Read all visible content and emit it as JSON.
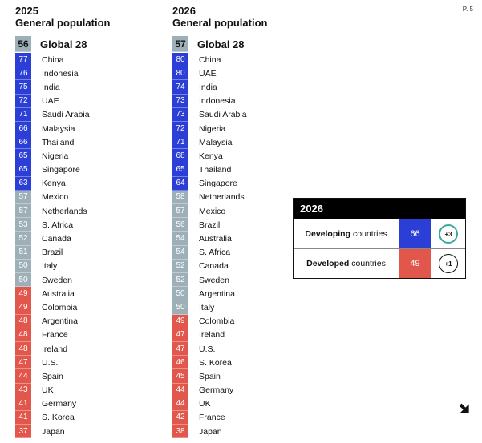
{
  "page_number": "P. 5",
  "colors": {
    "blue": "#2b3fd6",
    "grey": "#9db0b8",
    "red": "#e2574c",
    "teal": "#3aa99a",
    "black": "#111111"
  },
  "col_2025": {
    "year": "2025",
    "subtitle": "General population",
    "global": {
      "score": "56",
      "name": "Global 28"
    },
    "rows": [
      {
        "score": "77",
        "name": "China",
        "band": "blue"
      },
      {
        "score": "76",
        "name": "Indonesia",
        "band": "blue"
      },
      {
        "score": "75",
        "name": "India",
        "band": "blue"
      },
      {
        "score": "72",
        "name": "UAE",
        "band": "blue"
      },
      {
        "score": "71",
        "name": "Saudi Arabia",
        "band": "blue"
      },
      {
        "score": "66",
        "name": "Malaysia",
        "band": "blue"
      },
      {
        "score": "66",
        "name": "Thailand",
        "band": "blue"
      },
      {
        "score": "65",
        "name": "Nigeria",
        "band": "blue"
      },
      {
        "score": "65",
        "name": "Singapore",
        "band": "blue"
      },
      {
        "score": "63",
        "name": "Kenya",
        "band": "blue"
      },
      {
        "score": "57",
        "name": "Mexico",
        "band": "grey"
      },
      {
        "score": "57",
        "name": "Netherlands",
        "band": "grey"
      },
      {
        "score": "53",
        "name": "S. Africa",
        "band": "grey"
      },
      {
        "score": "52",
        "name": "Canada",
        "band": "grey"
      },
      {
        "score": "51",
        "name": "Brazil",
        "band": "grey"
      },
      {
        "score": "50",
        "name": "Italy",
        "band": "grey"
      },
      {
        "score": "50",
        "name": "Sweden",
        "band": "grey"
      },
      {
        "score": "49",
        "name": "Australia",
        "band": "red"
      },
      {
        "score": "49",
        "name": "Colombia",
        "band": "red"
      },
      {
        "score": "48",
        "name": "Argentina",
        "band": "red"
      },
      {
        "score": "48",
        "name": "France",
        "band": "red"
      },
      {
        "score": "48",
        "name": "Ireland",
        "band": "red"
      },
      {
        "score": "47",
        "name": "U.S.",
        "band": "red"
      },
      {
        "score": "44",
        "name": "Spain",
        "band": "red"
      },
      {
        "score": "43",
        "name": "UK",
        "band": "red"
      },
      {
        "score": "41",
        "name": "Germany",
        "band": "red"
      },
      {
        "score": "41",
        "name": "S. Korea",
        "band": "red"
      },
      {
        "score": "37",
        "name": "Japan",
        "band": "red"
      }
    ]
  },
  "col_2026": {
    "year": "2026",
    "subtitle": "General population",
    "global": {
      "score": "57",
      "name": "Global 28"
    },
    "rows": [
      {
        "score": "80",
        "name": "China",
        "band": "blue"
      },
      {
        "score": "80",
        "name": "UAE",
        "band": "blue"
      },
      {
        "score": "74",
        "name": "India",
        "band": "blue"
      },
      {
        "score": "73",
        "name": "Indonesia",
        "band": "blue"
      },
      {
        "score": "73",
        "name": "Saudi Arabia",
        "band": "blue"
      },
      {
        "score": "72",
        "name": "Nigeria",
        "band": "blue"
      },
      {
        "score": "71",
        "name": "Malaysia",
        "band": "blue"
      },
      {
        "score": "68",
        "name": "Kenya",
        "band": "blue"
      },
      {
        "score": "65",
        "name": "Thailand",
        "band": "blue"
      },
      {
        "score": "64",
        "name": "Singapore",
        "band": "blue"
      },
      {
        "score": "58",
        "name": "Netherlands",
        "band": "grey"
      },
      {
        "score": "57",
        "name": "Mexico",
        "band": "grey"
      },
      {
        "score": "56",
        "name": "Brazil",
        "band": "grey"
      },
      {
        "score": "54",
        "name": "Australia",
        "band": "grey"
      },
      {
        "score": "54",
        "name": "S. Africa",
        "band": "grey"
      },
      {
        "score": "52",
        "name": "Canada",
        "band": "grey"
      },
      {
        "score": "52",
        "name": "Sweden",
        "band": "grey"
      },
      {
        "score": "50",
        "name": "Argentina",
        "band": "grey"
      },
      {
        "score": "50",
        "name": "Italy",
        "band": "grey"
      },
      {
        "score": "49",
        "name": "Colombia",
        "band": "red"
      },
      {
        "score": "47",
        "name": "Ireland",
        "band": "red"
      },
      {
        "score": "47",
        "name": "U.S.",
        "band": "red"
      },
      {
        "score": "46",
        "name": "S. Korea",
        "band": "red"
      },
      {
        "score": "45",
        "name": "Spain",
        "band": "red"
      },
      {
        "score": "44",
        "name": "Germany",
        "band": "red"
      },
      {
        "score": "44",
        "name": "UK",
        "band": "red"
      },
      {
        "score": "42",
        "name": "France",
        "band": "red"
      },
      {
        "score": "38",
        "name": "Japan",
        "band": "red"
      }
    ]
  },
  "summary_card": {
    "title": "2026",
    "developing": {
      "label_bold": "Developing",
      "label_rest": "countries",
      "score": "66",
      "change": "+3"
    },
    "developed": {
      "label_bold": "Developed",
      "label_rest": "countries",
      "score": "49",
      "change": "+1"
    }
  },
  "nav": {
    "icon": "arrow-icon"
  }
}
